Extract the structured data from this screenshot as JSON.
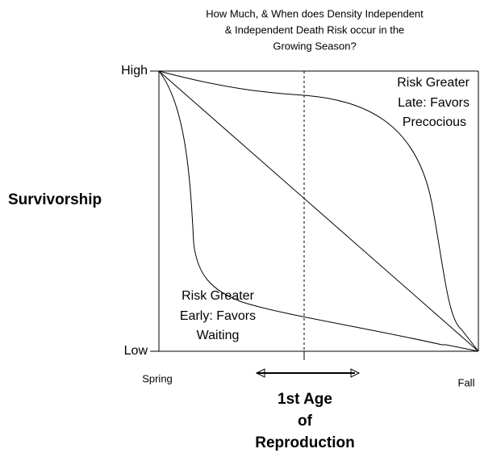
{
  "title": [
    "How Much, & When does Density Independent",
    "& Independent Death Risk occur in the",
    "Growing Season?"
  ],
  "y_axis": {
    "label": "Survivorship",
    "high": "High",
    "low": "Low"
  },
  "x_axis": {
    "start": "Spring",
    "end": "Fall",
    "marker": [
      "1st Age",
      "of",
      "Reproduction"
    ]
  },
  "annotations": {
    "late": [
      "Risk Greater",
      "Late: Favors",
      "Precocious"
    ],
    "early": [
      "Risk Greater",
      "Early: Favors",
      "Waiting"
    ]
  }
}
